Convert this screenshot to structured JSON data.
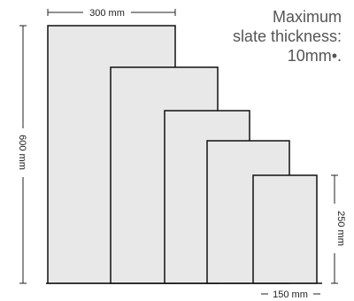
{
  "note": {
    "line1": "Maximum",
    "line2": "slate thickness:",
    "line3": "10mm•."
  },
  "dimensions": {
    "top_width": "300 mm",
    "left_height": "600 mm",
    "right_height": "250 mm",
    "bottom_width": "150 mm"
  },
  "colors": {
    "slate_fill": "#e8e8e8",
    "outline": "#111111"
  }
}
